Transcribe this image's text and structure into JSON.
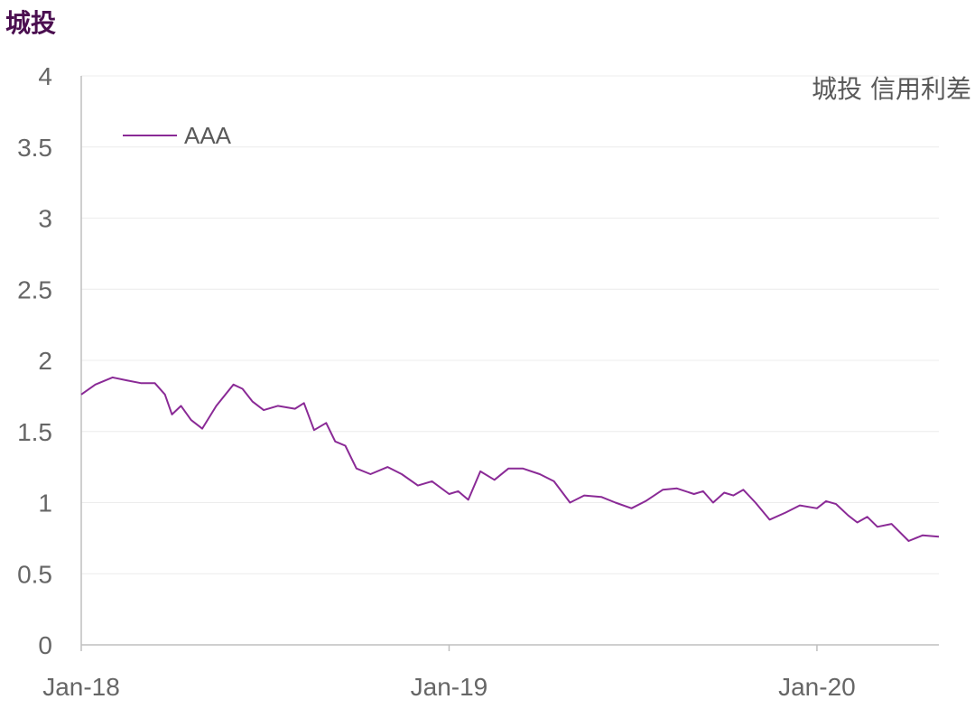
{
  "page": {
    "title": "城投"
  },
  "chart_data": {
    "type": "line",
    "title": "城投 信用利差",
    "xlabel": "",
    "ylabel": "",
    "ylim": [
      0,
      4
    ],
    "y_ticks": [
      0,
      0.5,
      1,
      1.5,
      2,
      2.5,
      3,
      3.5,
      4
    ],
    "y_tick_labels": [
      "0",
      "0.5",
      "1",
      "1.5",
      "2",
      "2.5",
      "3",
      "3.5",
      "4"
    ],
    "x_range": [
      "2018-01-01",
      "2020-05-01"
    ],
    "x_ticks": [
      "2018-01-01",
      "2019-01-01",
      "2020-01-01"
    ],
    "x_tick_labels": [
      "Jan-18",
      "Jan-19",
      "Jan-20"
    ],
    "grid": true,
    "legend_position": "top-left",
    "series": [
      {
        "name": "AAA",
        "color": "#8a2a96",
        "points": [
          [
            "2018-01-01",
            1.76
          ],
          [
            "2018-01-15",
            1.83
          ],
          [
            "2018-02-01",
            1.88
          ],
          [
            "2018-02-15",
            1.86
          ],
          [
            "2018-03-01",
            1.84
          ],
          [
            "2018-03-15",
            1.84
          ],
          [
            "2018-03-25",
            1.76
          ],
          [
            "2018-04-01",
            1.62
          ],
          [
            "2018-04-10",
            1.68
          ],
          [
            "2018-04-20",
            1.58
          ],
          [
            "2018-05-01",
            1.52
          ],
          [
            "2018-05-15",
            1.68
          ],
          [
            "2018-06-01",
            1.83
          ],
          [
            "2018-06-10",
            1.8
          ],
          [
            "2018-06-20",
            1.71
          ],
          [
            "2018-07-01",
            1.65
          ],
          [
            "2018-07-15",
            1.68
          ],
          [
            "2018-08-01",
            1.66
          ],
          [
            "2018-08-10",
            1.7
          ],
          [
            "2018-08-20",
            1.51
          ],
          [
            "2018-09-01",
            1.56
          ],
          [
            "2018-09-10",
            1.43
          ],
          [
            "2018-09-20",
            1.4
          ],
          [
            "2018-10-01",
            1.24
          ],
          [
            "2018-10-15",
            1.2
          ],
          [
            "2018-11-01",
            1.25
          ],
          [
            "2018-11-15",
            1.2
          ],
          [
            "2018-12-01",
            1.12
          ],
          [
            "2018-12-15",
            1.15
          ],
          [
            "2019-01-01",
            1.06
          ],
          [
            "2019-01-10",
            1.08
          ],
          [
            "2019-01-20",
            1.02
          ],
          [
            "2019-02-01",
            1.22
          ],
          [
            "2019-02-15",
            1.16
          ],
          [
            "2019-03-01",
            1.24
          ],
          [
            "2019-03-15",
            1.24
          ],
          [
            "2019-04-01",
            1.2
          ],
          [
            "2019-04-15",
            1.15
          ],
          [
            "2019-05-01",
            1.0
          ],
          [
            "2019-05-15",
            1.05
          ],
          [
            "2019-06-01",
            1.04
          ],
          [
            "2019-06-15",
            1.0
          ],
          [
            "2019-07-01",
            0.96
          ],
          [
            "2019-07-15",
            1.01
          ],
          [
            "2019-08-01",
            1.09
          ],
          [
            "2019-08-15",
            1.1
          ],
          [
            "2019-09-01",
            1.06
          ],
          [
            "2019-09-10",
            1.08
          ],
          [
            "2019-09-20",
            1.0
          ],
          [
            "2019-10-01",
            1.07
          ],
          [
            "2019-10-10",
            1.05
          ],
          [
            "2019-10-20",
            1.09
          ],
          [
            "2019-11-01",
            1.0
          ],
          [
            "2019-11-15",
            0.88
          ],
          [
            "2019-12-01",
            0.93
          ],
          [
            "2019-12-15",
            0.98
          ],
          [
            "2020-01-01",
            0.96
          ],
          [
            "2020-01-10",
            1.01
          ],
          [
            "2020-01-20",
            0.99
          ],
          [
            "2020-02-01",
            0.91
          ],
          [
            "2020-02-10",
            0.86
          ],
          [
            "2020-02-20",
            0.9
          ],
          [
            "2020-03-01",
            0.83
          ],
          [
            "2020-03-15",
            0.85
          ],
          [
            "2020-04-01",
            0.73
          ],
          [
            "2020-04-15",
            0.77
          ],
          [
            "2020-05-01",
            0.76
          ]
        ]
      }
    ]
  }
}
